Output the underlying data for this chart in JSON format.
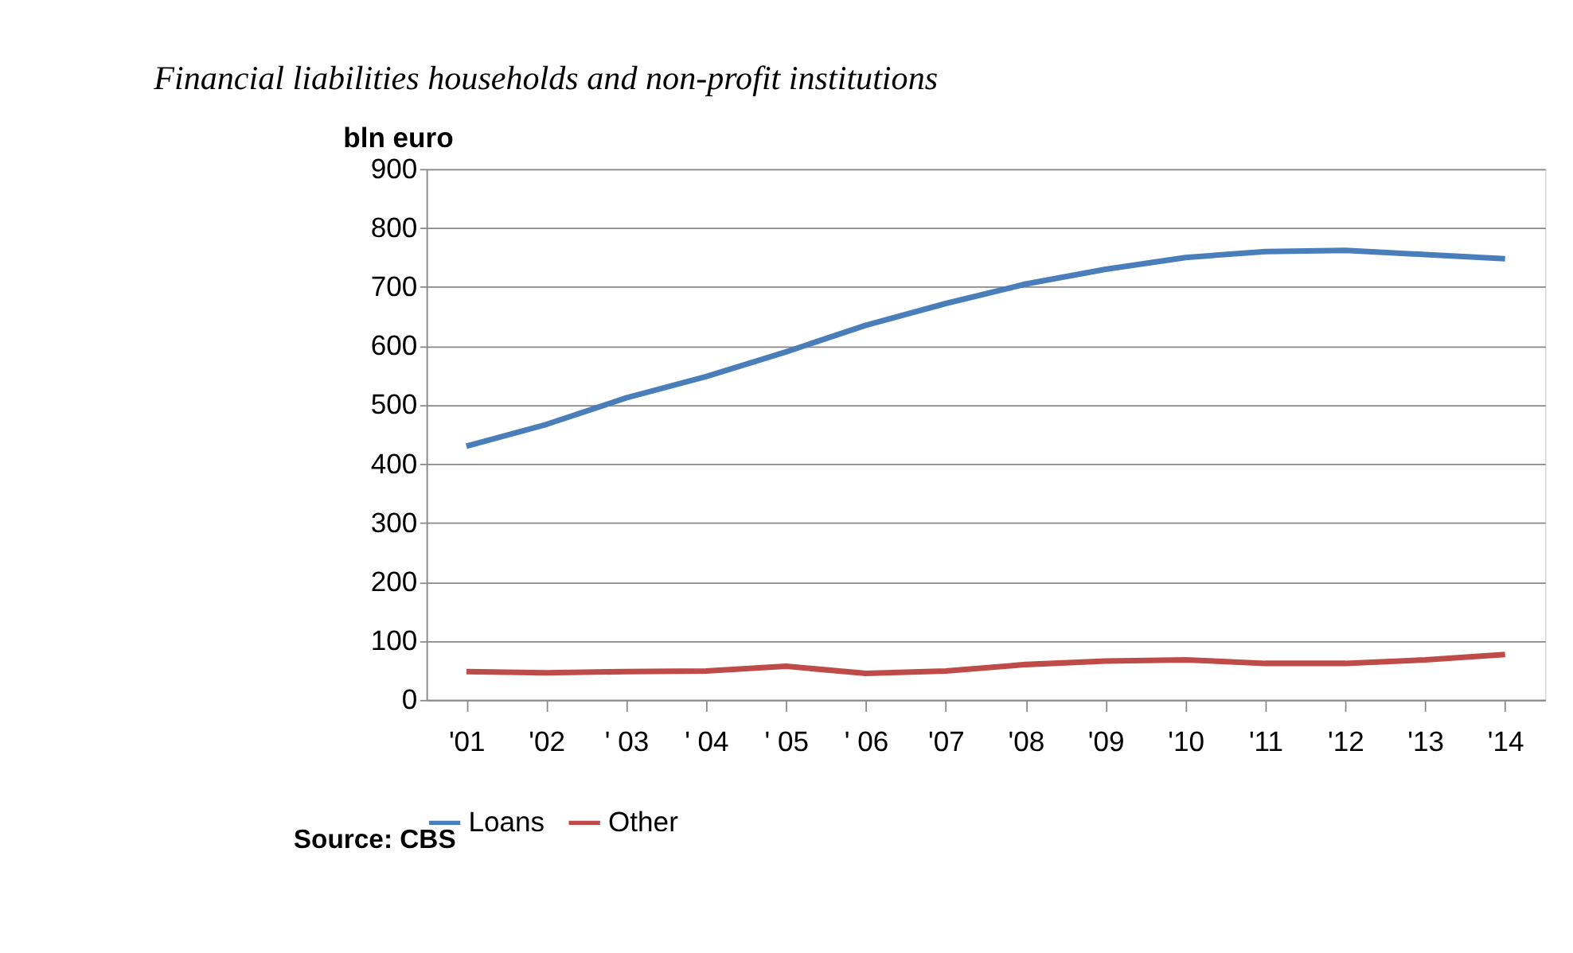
{
  "chart_data": {
    "type": "line",
    "title": "Financial liabilities households and non-profit institutions",
    "ylabel": "bln euro",
    "categories": [
      "'01",
      "'02",
      "' 03",
      "' 04",
      "' 05",
      "' 06",
      "'07",
      "'08",
      "'09",
      "'10",
      "'11",
      "'12",
      "'13",
      "'14"
    ],
    "series": [
      {
        "name": "Loans",
        "color": "#4a7ebb",
        "values": [
          430,
          467,
          512,
          548,
          590,
          635,
          672,
          705,
          730,
          750,
          760,
          762,
          755,
          748
        ]
      },
      {
        "name": "Other",
        "color": "#be4b48",
        "values": [
          48,
          46,
          48,
          49,
          57,
          45,
          49,
          60,
          66,
          68,
          62,
          62,
          68,
          77
        ]
      }
    ],
    "ylim": [
      0,
      900
    ],
    "yticks": [
      0,
      100,
      200,
      300,
      400,
      500,
      600,
      700,
      800,
      900
    ],
    "grid": "y",
    "legend": "bottom",
    "marker": "none",
    "line_style": "solid",
    "annotations": [
      "Source: CBS"
    ]
  }
}
